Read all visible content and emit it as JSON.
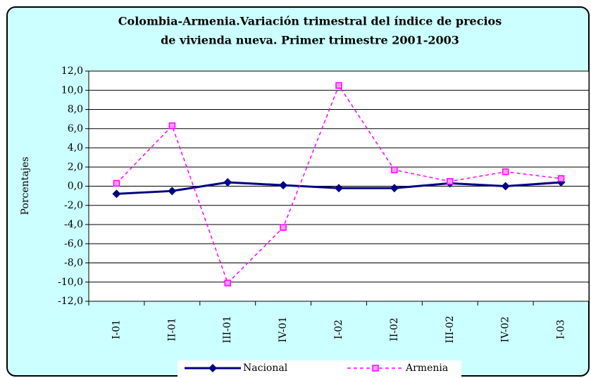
{
  "chart_data": {
    "type": "line",
    "title": [
      "Colombia-Armenia.Variación trimestral del índice de precios",
      "de vivienda nueva. Primer trimestre 2001-2003"
    ],
    "y_label": "Porcentajes",
    "categories": [
      "I-01",
      "II-01",
      "III-01",
      "IV-01",
      "I-02",
      "II-02",
      "III-02",
      "IV-02",
      "I-03"
    ],
    "series": [
      {
        "name": "Nacional",
        "color": "#000080",
        "values": [
          -0.8,
          -0.5,
          0.4,
          0.1,
          -0.2,
          -0.2,
          0.3,
          0.0,
          0.4
        ]
      },
      {
        "name": "Armenia",
        "color": "#ff00ff",
        "values": [
          0.3,
          6.3,
          -10.1,
          -4.3,
          10.5,
          1.7,
          0.5,
          1.5,
          0.8
        ]
      }
    ],
    "ylim": [
      -12,
      12
    ],
    "yticks": [
      {
        "value": -12,
        "label": "-12,0"
      },
      {
        "value": -10,
        "label": "-10,0"
      },
      {
        "value": -8,
        "label": "-8,0"
      },
      {
        "value": -6,
        "label": "-6,0"
      },
      {
        "value": -4,
        "label": "-4,0"
      },
      {
        "value": -2,
        "label": "-2,0"
      },
      {
        "value": 0,
        "label": "0,0"
      },
      {
        "value": 2,
        "label": "2,0"
      },
      {
        "value": 4,
        "label": "4,0"
      },
      {
        "value": 6,
        "label": "6,0"
      },
      {
        "value": 8,
        "label": "8,0"
      },
      {
        "value": 10,
        "label": "10,0"
      },
      {
        "value": 12,
        "label": "12,0"
      }
    ],
    "grid": true,
    "legend": "bottom",
    "background": "#ccffff"
  }
}
